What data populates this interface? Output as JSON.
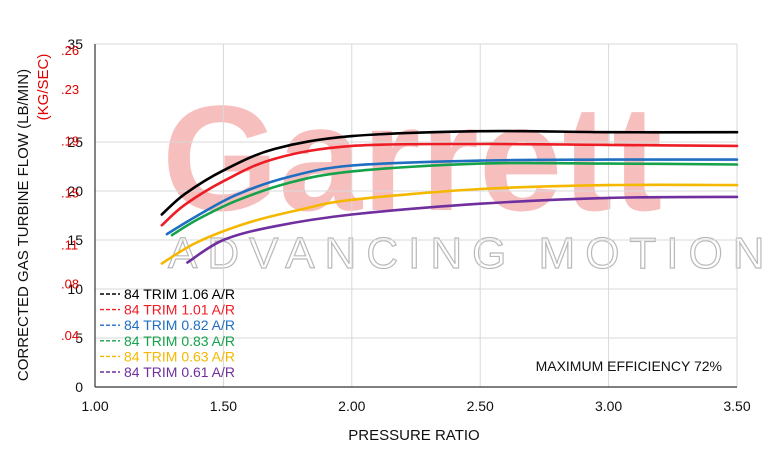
{
  "chart_data": {
    "type": "line",
    "title": "",
    "xlabel": "PRESSURE RATIO",
    "ylabel": "CORRECTED GAS TURBINE FLOW (LB/MIN)",
    "ylabel_secondary": "(KG/SEC)",
    "xlim": [
      1.0,
      3.5
    ],
    "ylim": [
      0,
      35
    ],
    "x_ticks": [
      "1.00",
      "1.50",
      "2.00",
      "2.50",
      "3.00",
      "3.50"
    ],
    "y_ticks": [
      "0",
      "5",
      "10",
      "15",
      "20",
      "25",
      "35"
    ],
    "y_secondary_ticks": [
      ".04",
      ".08",
      ".11",
      ".15",
      ".19",
      ".23",
      ".26"
    ],
    "grid": true,
    "legend_position": "bottom-left",
    "annotation": "MAXIMUM EFFICIENCY 72%",
    "watermark": {
      "logo": "Garrett",
      "tagline": "ADVANCING MOTION"
    },
    "series": [
      {
        "name": "84 TRIM 1.06 A/R",
        "color": "#000000",
        "points": [
          [
            1.26,
            17.6
          ],
          [
            1.35,
            19.7
          ],
          [
            1.5,
            22.1
          ],
          [
            1.7,
            24.3
          ],
          [
            2.0,
            25.6
          ],
          [
            2.5,
            26.1
          ],
          [
            3.0,
            26.0
          ],
          [
            3.5,
            26.0
          ]
        ]
      },
      {
        "name": "84 TRIM 1.01 A/R",
        "color": "#ee1c25",
        "points": [
          [
            1.26,
            16.5
          ],
          [
            1.35,
            18.6
          ],
          [
            1.5,
            21.0
          ],
          [
            1.7,
            23.3
          ],
          [
            2.0,
            24.6
          ],
          [
            2.5,
            24.8
          ],
          [
            3.0,
            24.7
          ],
          [
            3.5,
            24.6
          ]
        ]
      },
      {
        "name": "84 TRIM 0.82 A/R",
        "color": "#1f6fc1",
        "points": [
          [
            1.28,
            15.6
          ],
          [
            1.4,
            17.5
          ],
          [
            1.55,
            19.6
          ],
          [
            1.75,
            21.4
          ],
          [
            2.0,
            22.6
          ],
          [
            2.5,
            23.1
          ],
          [
            3.0,
            23.2
          ],
          [
            3.5,
            23.2
          ]
        ]
      },
      {
        "name": "84 TRIM 0.83 A/R",
        "color": "#15a24a",
        "points": [
          [
            1.3,
            15.5
          ],
          [
            1.4,
            17.1
          ],
          [
            1.55,
            19.0
          ],
          [
            1.75,
            20.8
          ],
          [
            2.0,
            22.0
          ],
          [
            2.5,
            22.8
          ],
          [
            3.0,
            22.8
          ],
          [
            3.5,
            22.7
          ]
        ]
      },
      {
        "name": "84 TRIM 0.63 A/R",
        "color": "#f5b800",
        "points": [
          [
            1.26,
            12.6
          ],
          [
            1.4,
            14.8
          ],
          [
            1.6,
            16.8
          ],
          [
            1.8,
            18.1
          ],
          [
            2.0,
            19.1
          ],
          [
            2.5,
            20.2
          ],
          [
            3.0,
            20.6
          ],
          [
            3.5,
            20.6
          ]
        ]
      },
      {
        "name": "84 TRIM 0.61 A/R",
        "color": "#6f2f9e",
        "points": [
          [
            1.36,
            12.7
          ],
          [
            1.5,
            15.0
          ],
          [
            1.7,
            16.4
          ],
          [
            2.0,
            17.6
          ],
          [
            2.5,
            18.7
          ],
          [
            3.0,
            19.3
          ],
          [
            3.5,
            19.4
          ]
        ]
      }
    ]
  }
}
